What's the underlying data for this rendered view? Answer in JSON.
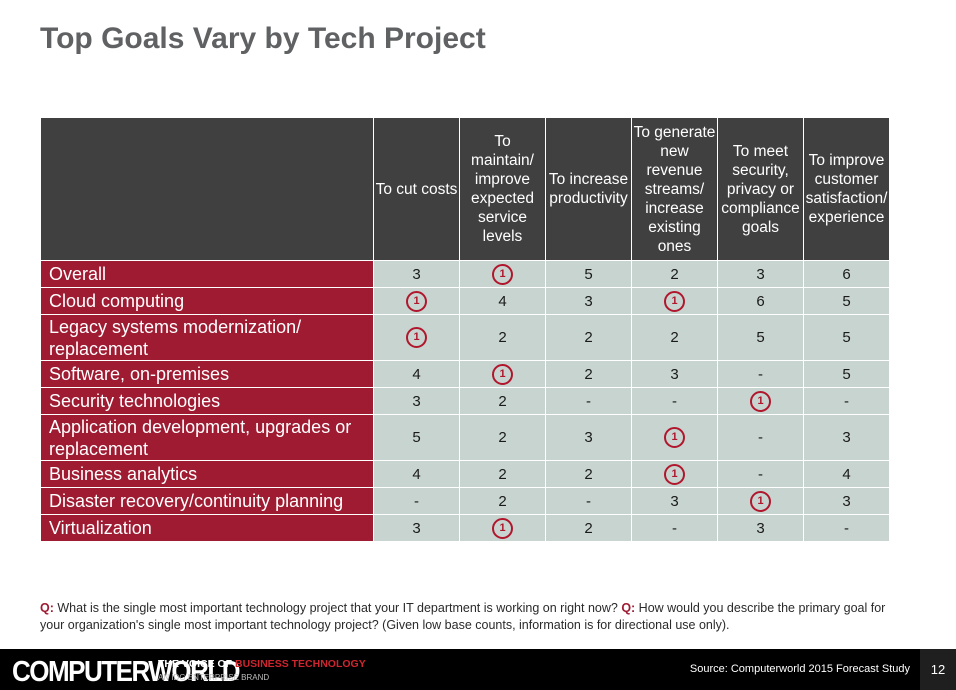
{
  "title": "Top Goals Vary by Tech Project",
  "chart_data": {
    "type": "table",
    "columns": [
      "To cut costs",
      "To maintain/ improve expected service levels",
      "To increase productivity",
      "To generate new revenue streams/ increase existing ones",
      "To meet security, privacy or compliance goals",
      "To improve customer satisfaction/ experience"
    ],
    "rows": [
      {
        "label": "Overall",
        "values": [
          "3",
          "1",
          "5",
          "2",
          "3",
          "6"
        ]
      },
      {
        "label": "Cloud computing",
        "values": [
          "1",
          "4",
          "3",
          "1",
          "6",
          "5"
        ]
      },
      {
        "label": "Legacy systems modernization/ replacement",
        "values": [
          "1",
          "2",
          "2",
          "2",
          "5",
          "5"
        ]
      },
      {
        "label": "Software, on-premises",
        "values": [
          "4",
          "1",
          "2",
          "3",
          "-",
          "5"
        ]
      },
      {
        "label": "Security technologies",
        "values": [
          "3",
          "2",
          "-",
          "-",
          "1",
          "-"
        ]
      },
      {
        "label": "Application development, upgrades or replacement",
        "values": [
          "5",
          "2",
          "3",
          "1",
          "-",
          "3"
        ]
      },
      {
        "label": "Business analytics",
        "values": [
          "4",
          "2",
          "2",
          "1",
          "-",
          "4"
        ]
      },
      {
        "label": "Disaster recovery/continuity planning",
        "values": [
          "-",
          "2",
          "-",
          "3",
          "1",
          "3"
        ]
      },
      {
        "label": "Virtualization",
        "values": [
          "3",
          "1",
          "2",
          "-",
          "3",
          "-"
        ]
      }
    ],
    "highlight_rank": "1"
  },
  "footnote": {
    "q1_label": "Q:",
    "q1_text": " What is the single most important technology project that your IT department is working on right now? ",
    "q2_label": "Q:",
    "q2_text": " How would you describe the primary goal for your organization's single most important technology project? (Given low base counts, information is for directional use only)."
  },
  "footer": {
    "brand": "COMPUTERWORLD",
    "tagline_white1": "THE VOICE",
    "tagline_white2": " OF ",
    "tagline_red": "BUSINESS TECHNOLOGY",
    "subtag": "AN IDG ENTERPRISE BRAND",
    "source": "Source: Computerworld 2015 Forecast Study",
    "page_number": "12"
  },
  "colors": {
    "header_bg": "#404040",
    "row_label_bg": "#9e1b32",
    "cell_bg": "#c8d4d0",
    "rank_circle": "#b0172d"
  }
}
